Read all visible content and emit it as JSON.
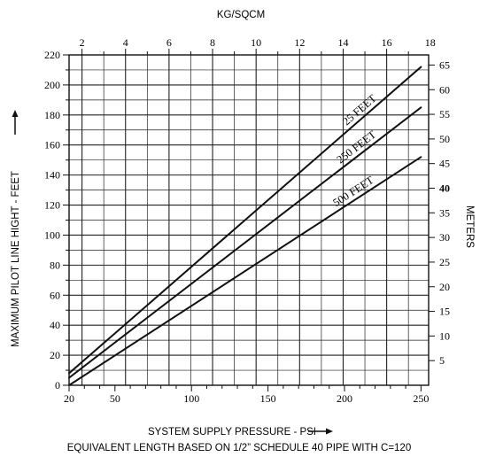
{
  "chart_data": {
    "type": "line",
    "top_axis_label": "KG/SQCM",
    "xlabel": "SYSTEM SUPPLY PRESSURE - PSI",
    "subtitle": "EQUIVALENT LENGTH BASED ON 1/2” SCHEDULE 40 PIPE WITH C=120",
    "ylabel": "MAXIMUM PILOT LINE HIGHT - FEET",
    "right_axis_label": "METERS",
    "xlim": [
      20,
      255
    ],
    "ylim": [
      0,
      220
    ],
    "x_ticks": [
      "20",
      "50",
      "100",
      "150",
      "200",
      "250"
    ],
    "x_tick_values": [
      20,
      50,
      100,
      150,
      200,
      250
    ],
    "y_ticks": [
      "0",
      "20",
      "40",
      "60",
      "80",
      "100",
      "120",
      "140",
      "160",
      "180",
      "200",
      "220"
    ],
    "y_tick_values": [
      0,
      20,
      40,
      60,
      80,
      100,
      120,
      140,
      160,
      180,
      200,
      220
    ],
    "top_ticks": [
      "2",
      "4",
      "6",
      "8",
      "10",
      "12",
      "14",
      "16",
      "18"
    ],
    "top_tick_values": [
      2,
      4,
      6,
      8,
      10,
      12,
      14,
      16,
      18
    ],
    "right_ticks": [
      "5",
      "10",
      "15",
      "20",
      "25",
      "30",
      "35",
      "40",
      "45",
      "50",
      "55",
      "60",
      "65"
    ],
    "right_tick_values": [
      5,
      10,
      15,
      20,
      25,
      30,
      35,
      40,
      45,
      50,
      55,
      60,
      65
    ],
    "grid": true,
    "series": [
      {
        "name": "25 FEET",
        "x": [
          20,
          250
        ],
        "y": [
          8,
          212
        ]
      },
      {
        "name": "250 FEET",
        "x": [
          20,
          250
        ],
        "y": [
          5,
          185
        ]
      },
      {
        "name": "500 FEET",
        "x": [
          20,
          250
        ],
        "y": [
          0,
          152
        ]
      }
    ],
    "colors": {
      "line": "#111111",
      "grid": "#222222",
      "background": "#ffffff"
    }
  }
}
